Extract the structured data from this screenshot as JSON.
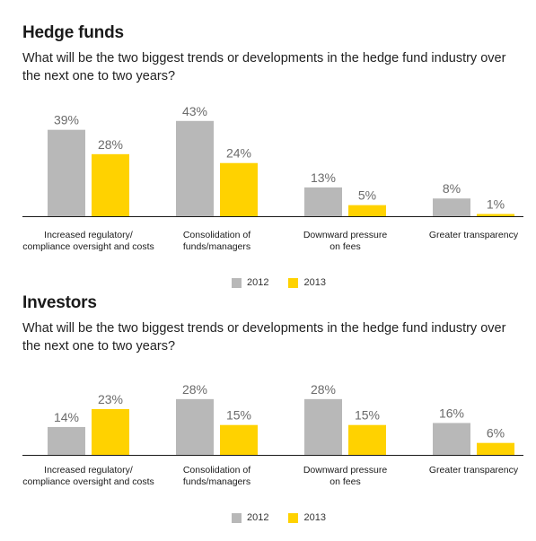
{
  "colors": {
    "s2012": "#b8b8b8",
    "s2013": "#ffd200",
    "axis": "#1a1a1a",
    "label": "#6b6b6b"
  },
  "chart_data": [
    {
      "type": "bar",
      "title": "Hedge funds",
      "subtitle": "What will be the two biggest trends or developments in the hedge fund industry over the next one to two years?",
      "categories": [
        [
          "Increased regulatory/",
          "compliance oversight and costs"
        ],
        [
          "Consolidation of",
          "funds/managers"
        ],
        [
          "Downward pressure",
          "on fees"
        ],
        [
          "Greater transparency"
        ]
      ],
      "series": [
        {
          "name": "2012",
          "values": [
            39,
            43,
            13,
            8
          ],
          "labels": [
            "39%",
            "43%",
            "13%",
            "8%"
          ]
        },
        {
          "name": "2013",
          "values": [
            28,
            24,
            5,
            1
          ],
          "labels": [
            "28%",
            "24%",
            "5%",
            "1%"
          ]
        }
      ],
      "legend_position": "bottom-center"
    },
    {
      "type": "bar",
      "title": "Investors",
      "subtitle": "What will be the two biggest trends or developments in the hedge fund industry over the next one to two years?",
      "categories": [
        [
          "Increased regulatory/",
          "compliance oversight and costs"
        ],
        [
          "Consolidation of",
          "funds/managers"
        ],
        [
          "Downward pressure",
          "on fees"
        ],
        [
          "Greater transparency"
        ]
      ],
      "series": [
        {
          "name": "2012",
          "values": [
            14,
            28,
            28,
            16
          ],
          "labels": [
            "14%",
            "28%",
            "28%",
            "16%"
          ]
        },
        {
          "name": "2013",
          "values": [
            23,
            15,
            15,
            6
          ],
          "labels": [
            "23%",
            "15%",
            "15%",
            "6%"
          ]
        }
      ],
      "legend_position": "bottom-center"
    }
  ]
}
